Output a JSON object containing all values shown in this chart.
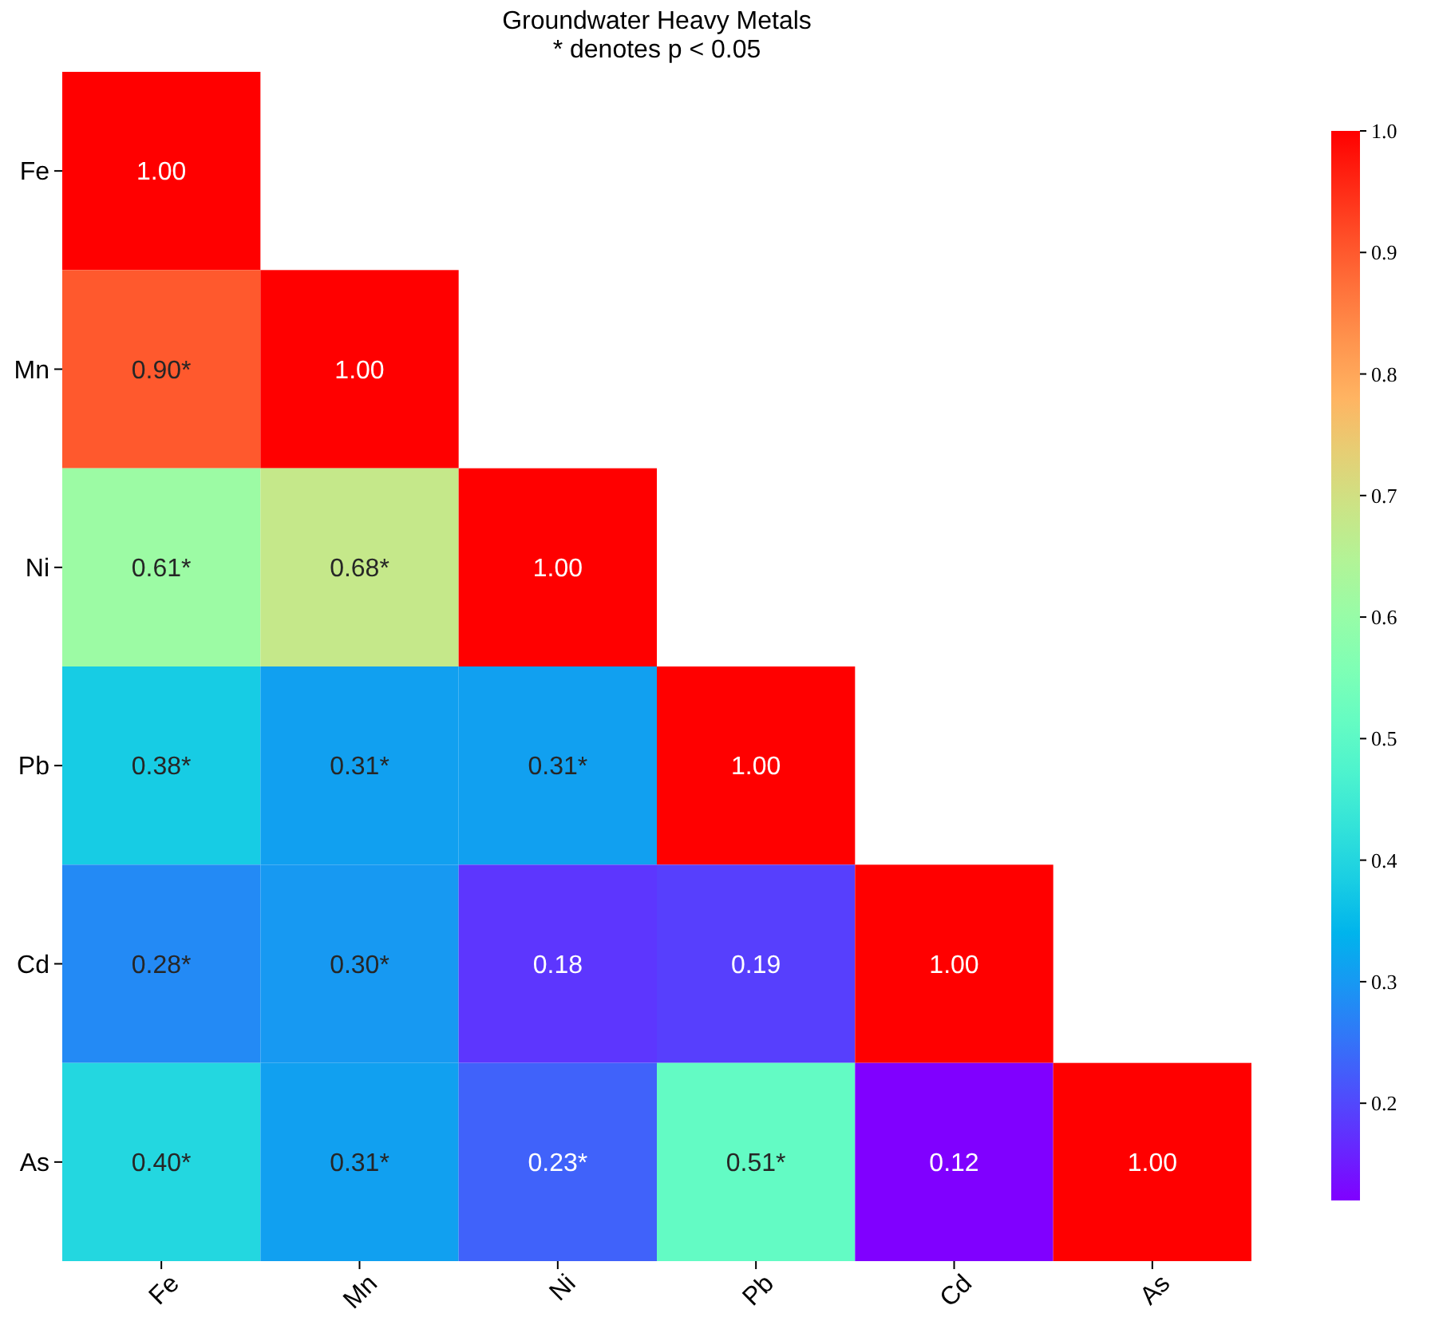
{
  "chart_data": {
    "type": "heatmap",
    "title": "Groundwater Heavy Metals\n* denotes p < 0.05",
    "categories": [
      "Fe",
      "Mn",
      "Ni",
      "Pb",
      "Cd",
      "As"
    ],
    "y_categories": [
      "Fe",
      "Mn",
      "Ni",
      "Pb",
      "Cd",
      "As"
    ],
    "cells": [
      [
        1.0,
        null,
        null,
        null,
        null,
        null
      ],
      [
        0.9,
        1.0,
        null,
        null,
        null,
        null
      ],
      [
        0.61,
        0.68,
        1.0,
        null,
        null,
        null
      ],
      [
        0.38,
        0.31,
        0.31,
        1.0,
        null,
        null
      ],
      [
        0.28,
        0.3,
        0.18,
        0.19,
        1.0,
        null
      ],
      [
        0.4,
        0.31,
        0.23,
        0.51,
        0.12,
        1.0
      ]
    ],
    "cell_labels": [
      [
        "1.00",
        null,
        null,
        null,
        null,
        null
      ],
      [
        "0.90*",
        "1.00",
        null,
        null,
        null,
        null
      ],
      [
        "0.61*",
        "0.68*",
        "1.00",
        null,
        null,
        null
      ],
      [
        "0.38*",
        "0.31*",
        "0.31*",
        "1.00",
        null,
        null
      ],
      [
        "0.28*",
        "0.30*",
        "0.18",
        "0.19",
        "1.00",
        null
      ],
      [
        "0.40*",
        "0.31*",
        "0.23*",
        "0.51*",
        "0.12",
        "1.00"
      ]
    ],
    "clim": [
      0.12,
      1.0
    ],
    "cticks": [
      {
        "value": 0.2,
        "label": "0.2"
      },
      {
        "value": 0.3,
        "label": "0.3"
      },
      {
        "value": 0.4,
        "label": "0.4"
      },
      {
        "value": 0.5,
        "label": "0.5"
      },
      {
        "value": 0.6,
        "label": "0.6"
      },
      {
        "value": 0.7,
        "label": "0.7"
      },
      {
        "value": 0.8,
        "label": "0.8"
      },
      {
        "value": 0.9,
        "label": "0.9"
      },
      {
        "value": 1.0,
        "label": "1.0"
      }
    ]
  }
}
